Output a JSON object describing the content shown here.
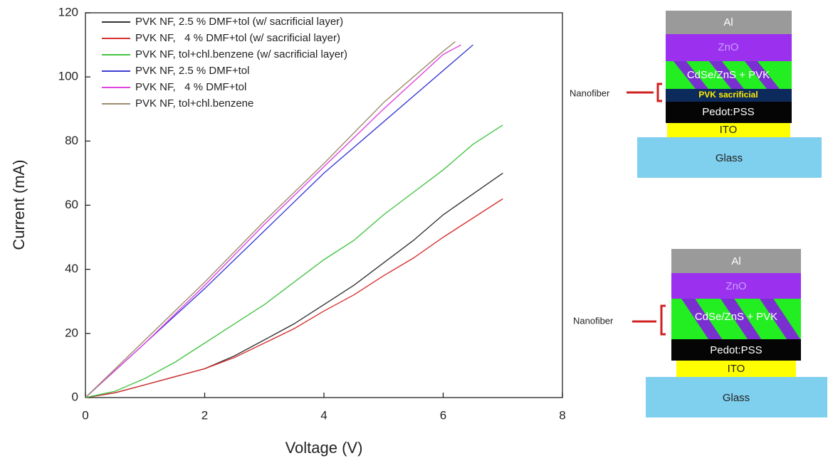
{
  "chart_data": {
    "type": "line",
    "xlabel": "Voltage (V)",
    "ylabel": "Current (mA)",
    "xlim": [
      0,
      8
    ],
    "xticks": [
      0,
      2,
      4,
      6,
      8
    ],
    "ylim": [
      0,
      120
    ],
    "yticks": [
      0,
      20,
      40,
      60,
      80,
      100,
      120
    ],
    "legend": "upper left",
    "series": [
      {
        "name": "PVK NF, 2.5 % DMF+tol (w/ sacrificial layer)",
        "color": "#333333",
        "x": [
          0,
          0.5,
          1,
          1.5,
          2,
          2.5,
          3,
          3.5,
          4,
          4.5,
          5,
          5.5,
          6,
          6.5,
          7
        ],
        "values": [
          0,
          1.5,
          4,
          6.5,
          9,
          13,
          18,
          23,
          29,
          35,
          42,
          49,
          57,
          63.5,
          70
        ]
      },
      {
        "name": "PVK NF,   4 % DMF+tol (w/ sacrificial layer)",
        "color": "#d83030",
        "x": [
          0,
          0.5,
          1,
          1.5,
          2,
          2.5,
          3,
          3.5,
          4,
          4.5,
          5,
          5.5,
          6,
          6.5,
          7
        ],
        "values": [
          0,
          1.5,
          4,
          6.5,
          9,
          12.5,
          17,
          21.5,
          27,
          32,
          38,
          43.5,
          50,
          56,
          62
        ]
      },
      {
        "name": "PVK NF, tol+chl.benzene (w/ sacrificial layer)",
        "color": "#44c444",
        "x": [
          0,
          0.5,
          1,
          1.5,
          2,
          2.5,
          3,
          3.5,
          4,
          4.5,
          5,
          5.5,
          6,
          6.5,
          7
        ],
        "values": [
          0,
          2,
          6,
          11,
          17,
          23,
          29,
          36,
          43,
          49,
          57,
          64,
          71,
          79,
          85
        ]
      },
      {
        "name": "PVK NF, 2.5 % DMF+tol",
        "color": "#3c3cd6",
        "x": [
          0,
          1,
          2,
          3,
          4,
          5,
          6,
          6.5
        ],
        "values": [
          0,
          17,
          34,
          52,
          70,
          86,
          102,
          110
        ]
      },
      {
        "name": "PVK NF,   4 % DMF+tol",
        "color": "#e044e0",
        "x": [
          0,
          1,
          2,
          3,
          4,
          5,
          6,
          6.3
        ],
        "values": [
          0,
          17,
          35,
          54,
          72,
          90,
          107,
          110
        ]
      },
      {
        "name": "PVK NF, tol+chl.benzene",
        "color": "#9c8c6c",
        "x": [
          0,
          1,
          2,
          3,
          4,
          5,
          6,
          6.2
        ],
        "values": [
          0,
          18,
          36,
          55,
          73,
          92,
          108,
          111
        ]
      }
    ]
  },
  "diagrams": [
    {
      "annotation": "Nanofiber",
      "layers": [
        "Al",
        "ZnO",
        "CdSe/ZnS + PVK",
        "PVK sacrificial",
        "Pedot:PSS",
        "ITO",
        "Glass"
      ]
    },
    {
      "annotation": "Nanofiber",
      "layers": [
        "Al",
        "ZnO",
        "CdSe/ZnS + PVK",
        "Pedot:PSS",
        "ITO",
        "Glass"
      ]
    }
  ]
}
